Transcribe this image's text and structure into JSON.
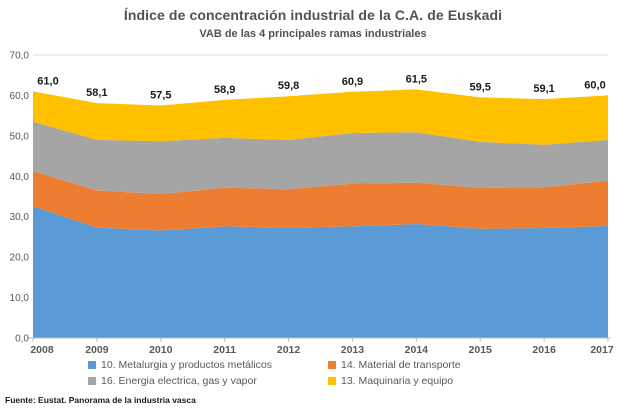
{
  "title": "Índice de concentración industrial de la C.A. de Euskadi",
  "subtitle": "VAB de las 4 principales ramas industriales",
  "source": "Fuente: Eustat. Panorama de la industria vasca",
  "chart_data": {
    "type": "area",
    "stacked": true,
    "title": "Índice de concentración industrial de la C.A. de Euskadi",
    "subtitle": "VAB de las 4 principales ramas industriales",
    "x": [
      "2008",
      "2009",
      "2010",
      "2011",
      "2012",
      "2013",
      "2014",
      "2015",
      "2016",
      "2017"
    ],
    "series": [
      {
        "id": "metalurgia",
        "name": "10. Metalurgia y productos metálicos",
        "color": "#5B9BD5",
        "values": [
          32.6,
          27.3,
          26.6,
          27.6,
          27.3,
          27.6,
          28.2,
          27.0,
          27.2,
          27.7
        ]
      },
      {
        "id": "transporte",
        "name": "14. Material de transporte",
        "color": "#ED7D31",
        "values": [
          8.7,
          9.2,
          9.0,
          9.6,
          9.5,
          10.6,
          10.2,
          10.1,
          10.1,
          11.2
        ]
      },
      {
        "id": "energia",
        "name": "16. Energia electrica, gas y vapor",
        "color": "#A5A5A5",
        "values": [
          12.2,
          12.5,
          13.1,
          12.3,
          12.2,
          12.5,
          12.5,
          11.4,
          10.5,
          10.1
        ]
      },
      {
        "id": "maquinaria",
        "name": "13. Maquinaria y equipo",
        "color": "#FFC000",
        "values": [
          7.5,
          9.1,
          8.8,
          9.4,
          10.8,
          10.2,
          10.6,
          11.0,
          11.3,
          11.0
        ]
      }
    ],
    "totals": [
      61.0,
      58.1,
      57.5,
      58.9,
      59.8,
      60.9,
      61.5,
      59.5,
      59.1,
      60.0
    ],
    "total_labels": [
      "61,0",
      "58,1",
      "57,5",
      "58,9",
      "59,8",
      "60,9",
      "61,5",
      "59,5",
      "59,1",
      "60,0"
    ],
    "ylim": [
      0,
      70
    ],
    "ytick_step": 10,
    "ytick_labels": [
      "0,0",
      "10,0",
      "20,0",
      "30,0",
      "40,0",
      "50,0",
      "60,0",
      "70,0"
    ],
    "grid": "top-gridline-only",
    "legend_position": "bottom",
    "axis_color": "#bfbfbf",
    "gridline_color": "#d9d9d9",
    "label_color": "#1a1a1a",
    "tick_text_color": "#595959"
  }
}
